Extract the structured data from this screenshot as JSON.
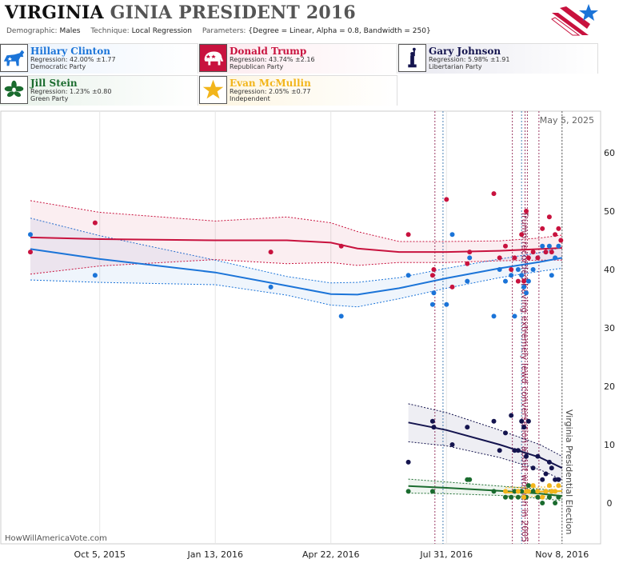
{
  "header": {
    "title_state": "VIRGINIA",
    "title_rest": "GINIA PRESIDENT 2016",
    "demographic_label": "Demographic:",
    "demographic_value": "Males",
    "technique_label": "Technique:",
    "technique_value": "Local Regression",
    "parameters_label": "Parameters:",
    "parameters_value": "{Degree = Linear, Alpha = 0.8, Bandwidth = 250}"
  },
  "candidates": [
    {
      "name": "Hillary Clinton",
      "regression": "Regression: 42.00% ±1.77",
      "party": "Democratic Party",
      "color": "#1b74d8",
      "icon": "donkey-icon"
    },
    {
      "name": "Donald Trump",
      "regression": "Regression: 43.74% ±2.16",
      "party": "Republican Party",
      "color": "#c8123e",
      "icon": "elephant-icon"
    },
    {
      "name": "Gary Johnson",
      "regression": "Regression: 5.98% ±1.91",
      "party": "Libertarian Party",
      "color": "#14144e",
      "icon": "liberty-statue-icon"
    },
    {
      "name": "Jill Stein",
      "regression": "Regression: 1.23% ±0.80",
      "party": "Green Party",
      "color": "#1a6b2e",
      "icon": "flower-icon"
    },
    {
      "name": "Evan McMullin",
      "regression": "Regression: 2.05% ±0.77",
      "party": "Independent",
      "color": "#f2b51b",
      "icon": "star-icon"
    }
  ],
  "footer": "HowWillAmericaVote.com",
  "chart_data": {
    "type": "scatter",
    "date_stamp": "May 5, 2025",
    "x_domain": [
      "2015-08-06",
      "2016-11-13"
    ],
    "ylim": [
      -4,
      67
    ],
    "y_ticks": [
      0,
      10,
      20,
      30,
      40,
      50,
      60
    ],
    "x_ticks": [
      {
        "date": "2015-10-05",
        "label": "Oct 5, 2015"
      },
      {
        "date": "2016-01-13",
        "label": "Jan 13, 2016"
      },
      {
        "date": "2016-04-22",
        "label": "Apr 22, 2016"
      },
      {
        "date": "2016-07-31",
        "label": "Jul 31, 2016"
      },
      {
        "date": "2016-11-08",
        "label": "Nov 8, 2016"
      }
    ],
    "events": [
      {
        "date": "2016-10-07",
        "label": "Trump recorded having extremely lewd conversation about women in 2005",
        "color": "#8b1a4a"
      },
      {
        "date": "2016-11-08",
        "label": "Virginia Presidential Election",
        "color": "#444444"
      }
    ],
    "event_lines": [
      {
        "date": "2016-07-21",
        "color": "#8b1a4a"
      },
      {
        "date": "2016-07-28",
        "color": "#2a6da8"
      },
      {
        "date": "2016-09-26",
        "color": "#8b1a4a"
      },
      {
        "date": "2016-10-04",
        "color": "#2a6da8"
      },
      {
        "date": "2016-10-07",
        "color": "#8b1a4a"
      },
      {
        "date": "2016-10-09",
        "color": "#8b1a4a"
      },
      {
        "date": "2016-10-19",
        "color": "#8b1a4a"
      },
      {
        "date": "2016-11-08",
        "color": "#444444"
      }
    ],
    "series": [
      {
        "name": "Hillary Clinton",
        "color": "#1b74d8",
        "points": [
          [
            "2015-08-06",
            46
          ],
          [
            "2015-10-01",
            39
          ],
          [
            "2016-03-01",
            37
          ],
          [
            "2016-05-01",
            32
          ],
          [
            "2016-06-28",
            39
          ],
          [
            "2016-07-19",
            34
          ],
          [
            "2016-07-20",
            36
          ],
          [
            "2016-07-31",
            34
          ],
          [
            "2016-08-05",
            46
          ],
          [
            "2016-08-18",
            38
          ],
          [
            "2016-08-20",
            42
          ],
          [
            "2016-09-10",
            32
          ],
          [
            "2016-09-15",
            40
          ],
          [
            "2016-09-20",
            38
          ],
          [
            "2016-09-25",
            39
          ],
          [
            "2016-09-28",
            32
          ],
          [
            "2016-10-01",
            40
          ],
          [
            "2016-10-04",
            39
          ],
          [
            "2016-10-06",
            37
          ],
          [
            "2016-10-08",
            36
          ],
          [
            "2016-10-10",
            38
          ],
          [
            "2016-10-14",
            40
          ],
          [
            "2016-10-18",
            42
          ],
          [
            "2016-10-22",
            44
          ],
          [
            "2016-10-25",
            43
          ],
          [
            "2016-10-28",
            44
          ],
          [
            "2016-10-30",
            39
          ],
          [
            "2016-11-02",
            42
          ],
          [
            "2016-11-05",
            44
          ]
        ],
        "trend": [
          [
            "2015-08-06",
            43.5
          ],
          [
            "2015-10-05",
            41.8
          ],
          [
            "2016-01-13",
            39.5
          ],
          [
            "2016-03-15",
            37.2
          ],
          [
            "2016-04-22",
            35.8
          ],
          [
            "2016-05-15",
            35.7
          ],
          [
            "2016-06-20",
            36.8
          ],
          [
            "2016-07-31",
            38.5
          ],
          [
            "2016-09-15",
            40.2
          ],
          [
            "2016-10-20",
            41.3
          ],
          [
            "2016-11-08",
            42.0
          ]
        ],
        "band_upper": [
          [
            "2015-08-06",
            48.8
          ],
          [
            "2015-10-05",
            45.8
          ],
          [
            "2016-01-13",
            41.6
          ],
          [
            "2016-03-15",
            38.8
          ],
          [
            "2016-04-22",
            37.7
          ],
          [
            "2016-05-15",
            37.8
          ],
          [
            "2016-06-20",
            38.6
          ],
          [
            "2016-07-31",
            40.2
          ],
          [
            "2016-09-15",
            41.8
          ],
          [
            "2016-10-20",
            42.9
          ],
          [
            "2016-11-08",
            43.8
          ]
        ],
        "band_lower": [
          [
            "2015-08-06",
            38.2
          ],
          [
            "2015-10-05",
            37.8
          ],
          [
            "2016-01-13",
            37.4
          ],
          [
            "2016-03-15",
            35.6
          ],
          [
            "2016-04-22",
            33.9
          ],
          [
            "2016-05-15",
            33.6
          ],
          [
            "2016-06-20",
            35.0
          ],
          [
            "2016-07-31",
            36.8
          ],
          [
            "2016-09-15",
            38.6
          ],
          [
            "2016-10-20",
            39.7
          ],
          [
            "2016-11-08",
            40.2
          ]
        ]
      },
      {
        "name": "Donald Trump",
        "color": "#c8123e",
        "points": [
          [
            "2015-08-06",
            43
          ],
          [
            "2015-10-01",
            48
          ],
          [
            "2016-03-01",
            43
          ],
          [
            "2016-05-01",
            44
          ],
          [
            "2016-06-28",
            46
          ],
          [
            "2016-07-19",
            39
          ],
          [
            "2016-07-20",
            40
          ],
          [
            "2016-07-31",
            52
          ],
          [
            "2016-08-05",
            37
          ],
          [
            "2016-08-18",
            41
          ],
          [
            "2016-08-20",
            43
          ],
          [
            "2016-09-10",
            53
          ],
          [
            "2016-09-15",
            42
          ],
          [
            "2016-09-20",
            44
          ],
          [
            "2016-09-25",
            40
          ],
          [
            "2016-09-28",
            42
          ],
          [
            "2016-10-01",
            38
          ],
          [
            "2016-10-04",
            46
          ],
          [
            "2016-10-06",
            38
          ],
          [
            "2016-10-08",
            50
          ],
          [
            "2016-10-10",
            42
          ],
          [
            "2016-10-14",
            43
          ],
          [
            "2016-10-18",
            42
          ],
          [
            "2016-10-22",
            47
          ],
          [
            "2016-10-25",
            43
          ],
          [
            "2016-10-28",
            49
          ],
          [
            "2016-10-30",
            43
          ],
          [
            "2016-11-02",
            46
          ],
          [
            "2016-11-05",
            47
          ],
          [
            "2016-11-07",
            45
          ]
        ],
        "trend": [
          [
            "2015-08-06",
            45.5
          ],
          [
            "2015-10-05",
            45.2
          ],
          [
            "2016-01-13",
            45.0
          ],
          [
            "2016-03-15",
            45.0
          ],
          [
            "2016-04-22",
            44.6
          ],
          [
            "2016-05-15",
            43.6
          ],
          [
            "2016-06-20",
            43.0
          ],
          [
            "2016-07-31",
            43.0
          ],
          [
            "2016-09-15",
            43.2
          ],
          [
            "2016-10-20",
            43.5
          ],
          [
            "2016-11-08",
            43.7
          ]
        ],
        "band_upper": [
          [
            "2015-08-06",
            51.8
          ],
          [
            "2015-10-05",
            49.8
          ],
          [
            "2016-01-13",
            48.3
          ],
          [
            "2016-03-15",
            49.0
          ],
          [
            "2016-04-22",
            48.0
          ],
          [
            "2016-05-15",
            46.5
          ],
          [
            "2016-06-20",
            44.8
          ],
          [
            "2016-07-31",
            44.8
          ],
          [
            "2016-09-15",
            44.9
          ],
          [
            "2016-10-20",
            45.4
          ],
          [
            "2016-11-08",
            45.9
          ]
        ],
        "band_lower": [
          [
            "2015-08-06",
            39.2
          ],
          [
            "2015-10-05",
            40.6
          ],
          [
            "2016-01-13",
            41.7
          ],
          [
            "2016-03-15",
            41.0
          ],
          [
            "2016-04-22",
            41.2
          ],
          [
            "2016-05-15",
            40.7
          ],
          [
            "2016-06-20",
            41.2
          ],
          [
            "2016-07-31",
            41.2
          ],
          [
            "2016-09-15",
            41.5
          ],
          [
            "2016-10-20",
            41.6
          ],
          [
            "2016-11-08",
            41.6
          ]
        ]
      },
      {
        "name": "Gary Johnson",
        "color": "#14144e",
        "points": [
          [
            "2016-06-28",
            7
          ],
          [
            "2016-07-19",
            14
          ],
          [
            "2016-07-20",
            13
          ],
          [
            "2016-08-05",
            10
          ],
          [
            "2016-08-18",
            13
          ],
          [
            "2016-09-10",
            14
          ],
          [
            "2016-09-15",
            9
          ],
          [
            "2016-09-20",
            12
          ],
          [
            "2016-09-25",
            15
          ],
          [
            "2016-09-28",
            9
          ],
          [
            "2016-10-01",
            9
          ],
          [
            "2016-10-04",
            14
          ],
          [
            "2016-10-06",
            13
          ],
          [
            "2016-10-08",
            8
          ],
          [
            "2016-10-10",
            14
          ],
          [
            "2016-10-14",
            6
          ],
          [
            "2016-10-18",
            8
          ],
          [
            "2016-10-22",
            4
          ],
          [
            "2016-10-25",
            5
          ],
          [
            "2016-10-28",
            7
          ],
          [
            "2016-10-30",
            6
          ],
          [
            "2016-11-02",
            4
          ],
          [
            "2016-11-05",
            4
          ]
        ],
        "trend": [
          [
            "2016-06-28",
            13.8
          ],
          [
            "2016-07-31",
            12.5
          ],
          [
            "2016-09-15",
            10.0
          ],
          [
            "2016-10-20",
            7.8
          ],
          [
            "2016-11-08",
            6.0
          ]
        ],
        "band_upper": [
          [
            "2016-06-28",
            17.0
          ],
          [
            "2016-07-31",
            15.5
          ],
          [
            "2016-09-15",
            12.5
          ],
          [
            "2016-10-20",
            10.0
          ],
          [
            "2016-11-08",
            8.0
          ]
        ],
        "band_lower": [
          [
            "2016-06-28",
            10.5
          ],
          [
            "2016-07-31",
            9.8
          ],
          [
            "2016-09-15",
            7.8
          ],
          [
            "2016-10-20",
            5.7
          ],
          [
            "2016-11-08",
            4.0
          ]
        ]
      },
      {
        "name": "Jill Stein",
        "color": "#1a6b2e",
        "points": [
          [
            "2016-06-28",
            2
          ],
          [
            "2016-07-19",
            2
          ],
          [
            "2016-08-18",
            4
          ],
          [
            "2016-08-20",
            4
          ],
          [
            "2016-09-10",
            2
          ],
          [
            "2016-09-20",
            1
          ],
          [
            "2016-09-25",
            1
          ],
          [
            "2016-09-28",
            2
          ],
          [
            "2016-10-01",
            1
          ],
          [
            "2016-10-04",
            2
          ],
          [
            "2016-10-08",
            1
          ],
          [
            "2016-10-10",
            3
          ],
          [
            "2016-10-14",
            2
          ],
          [
            "2016-10-18",
            1
          ],
          [
            "2016-10-22",
            0
          ],
          [
            "2016-10-25",
            2
          ],
          [
            "2016-10-28",
            1
          ],
          [
            "2016-10-30",
            2
          ],
          [
            "2016-11-02",
            0
          ],
          [
            "2016-11-05",
            1
          ]
        ],
        "trend": [
          [
            "2016-06-28",
            2.9
          ],
          [
            "2016-07-31",
            2.6
          ],
          [
            "2016-09-15",
            2.1
          ],
          [
            "2016-10-20",
            1.6
          ],
          [
            "2016-11-08",
            1.2
          ]
        ],
        "band_upper": [
          [
            "2016-06-28",
            4.1
          ],
          [
            "2016-07-31",
            3.6
          ],
          [
            "2016-09-15",
            2.9
          ],
          [
            "2016-10-20",
            2.4
          ],
          [
            "2016-11-08",
            2.0
          ]
        ],
        "band_lower": [
          [
            "2016-06-28",
            1.7
          ],
          [
            "2016-07-31",
            1.6
          ],
          [
            "2016-09-15",
            1.3
          ],
          [
            "2016-10-20",
            0.8
          ],
          [
            "2016-11-08",
            0.4
          ]
        ]
      },
      {
        "name": "Evan McMullin",
        "color": "#f2b51b",
        "points": [
          [
            "2016-09-20",
            2
          ],
          [
            "2016-10-01",
            2
          ],
          [
            "2016-10-06",
            1
          ],
          [
            "2016-10-08",
            2
          ],
          [
            "2016-10-10",
            2
          ],
          [
            "2016-10-14",
            3
          ],
          [
            "2016-10-18",
            2
          ],
          [
            "2016-10-22",
            1
          ],
          [
            "2016-10-25",
            2
          ],
          [
            "2016-10-28",
            3
          ],
          [
            "2016-10-30",
            2
          ],
          [
            "2016-11-02",
            2
          ],
          [
            "2016-11-05",
            3
          ]
        ],
        "trend": [
          [
            "2016-09-20",
            1.8
          ],
          [
            "2016-10-10",
            1.9
          ],
          [
            "2016-11-08",
            2.05
          ]
        ],
        "band_upper": [
          [
            "2016-09-20",
            2.7
          ],
          [
            "2016-10-10",
            2.7
          ],
          [
            "2016-11-08",
            2.8
          ]
        ],
        "band_lower": [
          [
            "2016-09-20",
            0.9
          ],
          [
            "2016-10-10",
            1.1
          ],
          [
            "2016-11-08",
            1.3
          ]
        ]
      }
    ]
  }
}
